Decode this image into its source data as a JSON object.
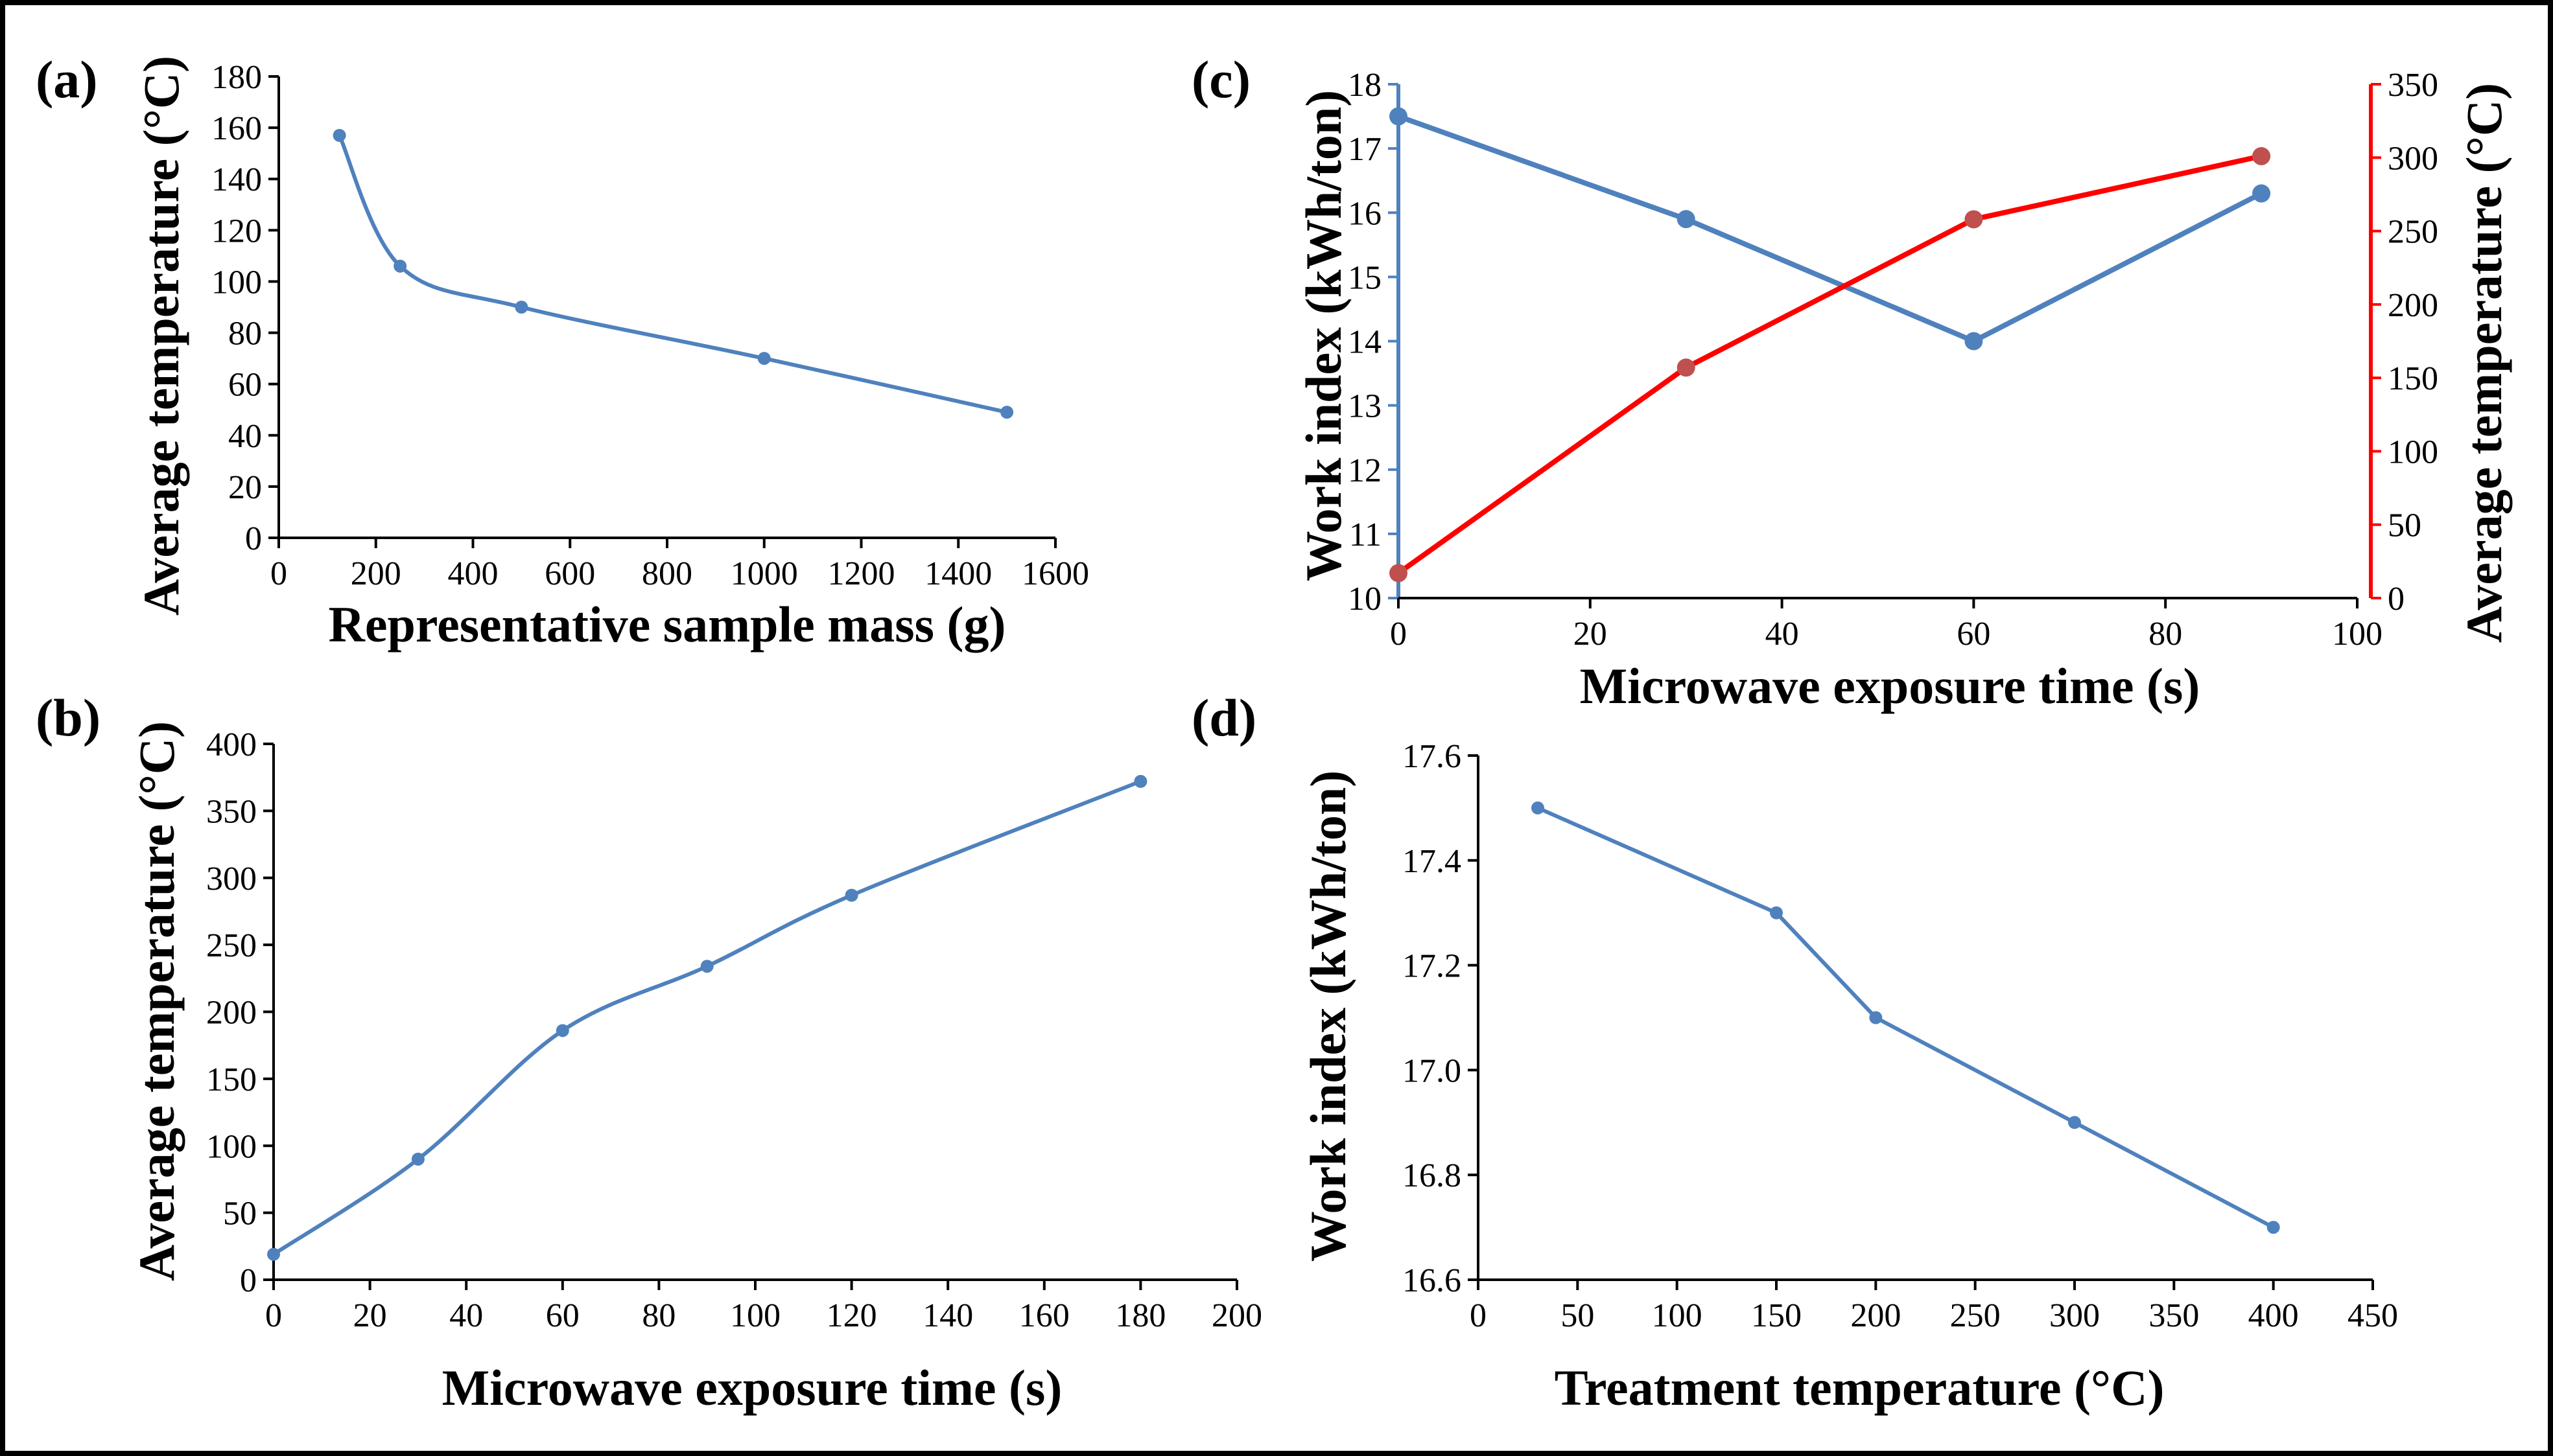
{
  "figure": {
    "colors": {
      "series_blue": "#4F81BD",
      "series_red": "#FF0000",
      "marker_red": "#C0504D",
      "axis": "#000000",
      "frame": "#000000"
    }
  },
  "chart_data": [
    {
      "id": "a",
      "panel_label": "(a)",
      "type": "line",
      "title": "",
      "xlabel": "Representative sample mass (g)",
      "ylabel": "Average temperature (°C)",
      "xlim": [
        0,
        1600
      ],
      "ylim": [
        0,
        180
      ],
      "xticks": [
        0,
        200,
        400,
        600,
        800,
        1000,
        1200,
        1400,
        1600
      ],
      "yticks": [
        0,
        20,
        40,
        60,
        80,
        100,
        120,
        140,
        160,
        180
      ],
      "smooth": true,
      "series": [
        {
          "name": "Average temperature",
          "color": "#4F81BD",
          "x": [
            125,
            250,
            500,
            1000,
            1500
          ],
          "y": [
            157,
            106,
            90,
            70,
            49
          ]
        }
      ]
    },
    {
      "id": "b",
      "panel_label": "(b)",
      "type": "line",
      "title": "",
      "xlabel": "Microwave exposure time (s)",
      "ylabel": "Average temperature (°C)",
      "xlim": [
        0,
        200
      ],
      "ylim": [
        0,
        400
      ],
      "xticks": [
        0,
        20,
        40,
        60,
        80,
        100,
        120,
        140,
        160,
        180,
        200
      ],
      "yticks": [
        0,
        50,
        100,
        150,
        200,
        250,
        300,
        350,
        400
      ],
      "smooth": true,
      "series": [
        {
          "name": "Average temperature",
          "color": "#4F81BD",
          "x": [
            0,
            30,
            60,
            90,
            120,
            180
          ],
          "y": [
            19,
            90,
            186,
            234,
            287,
            372
          ]
        }
      ]
    },
    {
      "id": "c",
      "panel_label": "(c)",
      "type": "line",
      "title": "",
      "xlabel": "Microwave exposure time (s)",
      "ylabel": "Work index (kWh/ton)",
      "y2label": "Average temperature (°C)",
      "xlim": [
        0,
        100
      ],
      "ylim": [
        10,
        18
      ],
      "y2lim": [
        0,
        350
      ],
      "xticks": [
        0,
        20,
        40,
        60,
        80,
        100
      ],
      "yticks": [
        10,
        11,
        12,
        13,
        14,
        15,
        16,
        17,
        18
      ],
      "y2ticks": [
        0,
        50,
        100,
        150,
        200,
        250,
        300,
        350
      ],
      "smooth": false,
      "series": [
        {
          "name": "Work index",
          "axis": "left",
          "color": "#4F81BD",
          "marker_color": "#4F81BD",
          "x": [
            0,
            30,
            60,
            90
          ],
          "y": [
            17.5,
            15.9,
            14.0,
            16.3
          ]
        },
        {
          "name": "Average temperature",
          "axis": "right",
          "color": "#FF0000",
          "marker_color": "#C0504D",
          "x": [
            0,
            30,
            60,
            90
          ],
          "y": [
            17,
            157,
            258,
            301
          ]
        }
      ]
    },
    {
      "id": "d",
      "panel_label": "(d)",
      "type": "line",
      "title": "",
      "xlabel": "Treatment temperature (°C)",
      "ylabel": "Work index (kWh/ton)",
      "xlim": [
        0,
        450
      ],
      "ylim": [
        16.6,
        17.6
      ],
      "xticks": [
        0,
        50,
        100,
        150,
        200,
        250,
        300,
        350,
        400,
        450
      ],
      "yticks": [
        16.6,
        16.8,
        17.0,
        17.2,
        17.4,
        17.6
      ],
      "ytick_decimals": 1,
      "smooth": false,
      "series": [
        {
          "name": "Work index",
          "color": "#4F81BD",
          "x": [
            30,
            150,
            200,
            300,
            400
          ],
          "y": [
            17.5,
            17.3,
            17.1,
            16.9,
            16.7
          ]
        }
      ]
    }
  ]
}
